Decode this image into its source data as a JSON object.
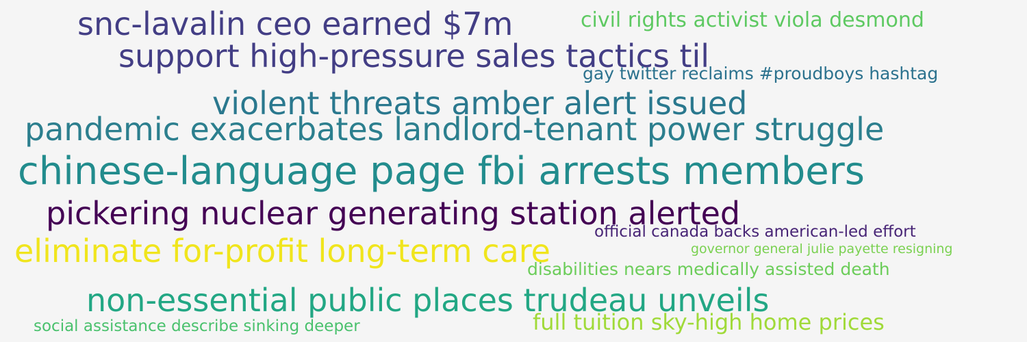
{
  "words": [
    {
      "text": "snc-lavalin ceo earned $7m",
      "color": "#433e85"
    },
    {
      "text": "civil rights activist viola desmond",
      "color": "#5ec962"
    },
    {
      "text": "support high-pressure sales tactics til",
      "color": "#433e85"
    },
    {
      "text": "gay twitter reclaims #proudboys hashtag",
      "color": "#2c728e"
    },
    {
      "text": "violent threats amber alert issued",
      "color": "#2a788e"
    },
    {
      "text": "pandemic exacerbates landlord-tenant power struggle",
      "color": "#2c7f8e"
    },
    {
      "text": "chinese-language page fbi arrests members",
      "color": "#228c8d"
    },
    {
      "text": "pickering nuclear generating station alerted",
      "color": "#440154"
    },
    {
      "text": "official canada backs american-led effort",
      "color": "#482576"
    },
    {
      "text": "eliminate for-profit long-term care",
      "color": "#f0e51d"
    },
    {
      "text": "governor general julie payette resigning",
      "color": "#7ad151"
    },
    {
      "text": "disabilities nears medically assisted death",
      "color": "#6ccd5a"
    },
    {
      "text": "non-essential public places trudeau unveils",
      "color": "#22a784"
    },
    {
      "text": "social assistance describe sinking deeper",
      "color": "#4ac16d"
    },
    {
      "text": "full tuition sky-high home prices",
      "color": "#a0da39"
    }
  ]
}
